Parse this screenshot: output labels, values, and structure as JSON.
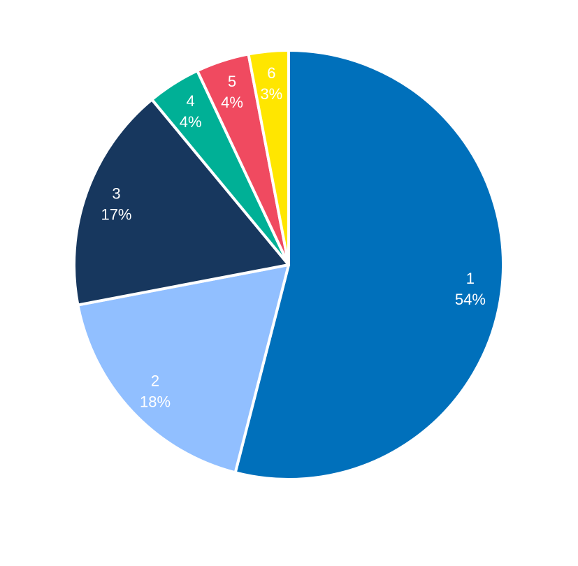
{
  "chart_data": {
    "type": "pie",
    "title": "",
    "start_angle": "12 o'clock",
    "direction": "clockwise",
    "legend": "none",
    "categories": [
      "1",
      "2",
      "3",
      "4",
      "5",
      "6"
    ],
    "values": [
      54,
      18,
      17,
      4,
      4,
      3
    ],
    "labels": [
      "54%",
      "18%",
      "17%",
      "4%",
      "4%",
      "3%"
    ],
    "colors": [
      "#0070bb",
      "#91bfff",
      "#17375e",
      "#00b096",
      "#f04a60",
      "#ffe600"
    ]
  }
}
